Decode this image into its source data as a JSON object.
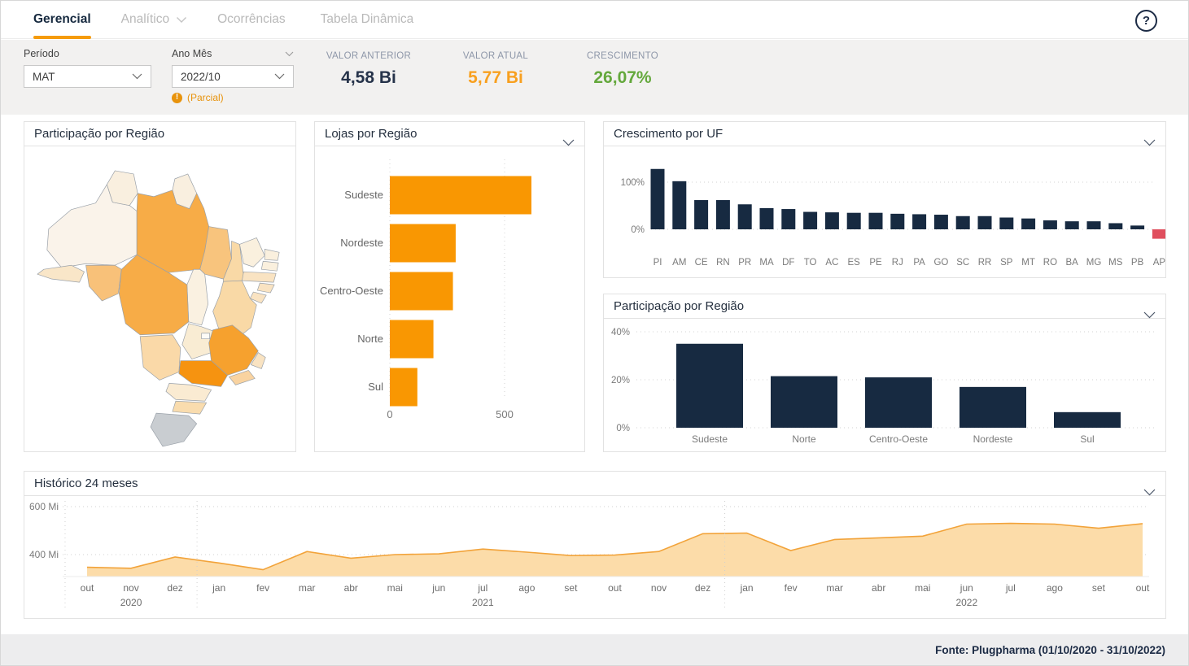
{
  "nav": {
    "tabs": [
      {
        "label": "Gerencial",
        "active": true
      },
      {
        "label": "Analítico",
        "active": false,
        "has_dropdown": true
      },
      {
        "label": "Ocorrências",
        "active": false
      },
      {
        "label": "Tabela Dinâmica",
        "active": false
      }
    ],
    "help_icon": "?"
  },
  "filters": {
    "periodo": {
      "label": "Período",
      "value": "MAT"
    },
    "ano_mes": {
      "label": "Ano Mês",
      "value": "2022/10",
      "warning": "(Parcial)"
    }
  },
  "kpis": [
    {
      "label": "VALOR ANTERIOR",
      "value": "4,58 Bi",
      "color": "#26334a"
    },
    {
      "label": "VALOR ATUAL",
      "value": "5,77 Bi",
      "color": "#f8a01f"
    },
    {
      "label": "CRESCIMENTO",
      "value": "26,07%",
      "color": "#64a83c"
    }
  ],
  "panels": {
    "map": {
      "title": "Participação por Região"
    },
    "lojas": {
      "title": "Lojas por Região"
    },
    "uf": {
      "title": "Crescimento por UF"
    },
    "regiao": {
      "title": "Participação por Região"
    },
    "historico": {
      "title": "Histórico 24 meses"
    }
  },
  "theme": {
    "orange": "#f99702",
    "navy": "#172a41",
    "red": "#e04f5e",
    "area_fill": "#fcdca9",
    "area_line": "#f2a33a",
    "grid": "#d3d3d3",
    "axis_text": "#7a7a7a"
  },
  "map": {
    "states": [
      {
        "id": "RR",
        "fill": "#f9efdf"
      },
      {
        "id": "AP",
        "fill": "#f9efdf"
      },
      {
        "id": "AM",
        "fill": "#faf3ea"
      },
      {
        "id": "PA",
        "fill": "#f7ac47"
      },
      {
        "id": "AC",
        "fill": "#f9e6c8"
      },
      {
        "id": "RO",
        "fill": "#f8c179"
      },
      {
        "id": "MA",
        "fill": "#f8c47d"
      },
      {
        "id": "PI",
        "fill": "#f9d9a6"
      },
      {
        "id": "CE",
        "fill": "#faf0de"
      },
      {
        "id": "RN",
        "fill": "#faf0de"
      },
      {
        "id": "PB",
        "fill": "#faf0de"
      },
      {
        "id": "PE",
        "fill": "#f9e3c2"
      },
      {
        "id": "AL",
        "fill": "#f9e3c2"
      },
      {
        "id": "SE",
        "fill": "#f9e3c2"
      },
      {
        "id": "BA",
        "fill": "#f9d9a6"
      },
      {
        "id": "TO",
        "fill": "#faf1e1"
      },
      {
        "id": "MT",
        "fill": "#f7ac47"
      },
      {
        "id": "GO",
        "fill": "#f9ecd3"
      },
      {
        "id": "DF",
        "fill": "#fdfbf7"
      },
      {
        "id": "MS",
        "fill": "#fad9a8"
      },
      {
        "id": "MG",
        "fill": "#f6a12e"
      },
      {
        "id": "ES",
        "fill": "#f9e3c2"
      },
      {
        "id": "RJ",
        "fill": "#f9d3a0"
      },
      {
        "id": "SP",
        "fill": "#f69310"
      },
      {
        "id": "PR",
        "fill": "#faebd2"
      },
      {
        "id": "SC",
        "fill": "#f9dcae"
      },
      {
        "id": "RS",
        "fill": "#c9cdd1"
      }
    ]
  },
  "chart_data": [
    {
      "id": "lojas",
      "type": "bar",
      "orientation": "horizontal",
      "title": "Lojas por Região",
      "categories": [
        "Sudeste",
        "Nordeste",
        "Centro-Oeste",
        "Norte",
        "Sul"
      ],
      "values": [
        617,
        287,
        275,
        190,
        120
      ],
      "xlabel": "",
      "ylabel": "",
      "xlim": [
        0,
        820
      ],
      "xticks": [
        0,
        500
      ],
      "grid": "dotted-vertical",
      "bar_color": "#f99702"
    },
    {
      "id": "uf",
      "type": "bar",
      "title": "Crescimento por UF",
      "categories": [
        "PI",
        "AM",
        "CE",
        "RN",
        "PR",
        "MA",
        "DF",
        "TO",
        "AC",
        "ES",
        "PE",
        "RJ",
        "PA",
        "GO",
        "SC",
        "RR",
        "SP",
        "MT",
        "RO",
        "BA",
        "MG",
        "MS",
        "PB",
        "AP"
      ],
      "values": [
        128,
        102,
        62,
        62,
        53,
        45,
        43,
        37,
        36,
        35,
        35,
        33,
        32,
        31,
        28,
        28,
        25,
        23,
        19,
        17,
        17,
        13,
        8,
        -20
      ],
      "ylabel": "%",
      "ylim": [
        -30,
        140
      ],
      "yticks": [
        0,
        100
      ],
      "ytick_labels": [
        "0%",
        "100%"
      ],
      "grid": "dotted-horizontal",
      "bar_color": "#172a41",
      "negative_color": "#e04f5e"
    },
    {
      "id": "regiao",
      "type": "bar",
      "title": "Participação por Região",
      "categories": [
        "Sudeste",
        "Norte",
        "Centro-Oeste",
        "Nordeste",
        "Sul"
      ],
      "values": [
        35,
        21.5,
        21,
        17,
        6.5
      ],
      "ylabel": "%",
      "ylim": [
        0,
        45
      ],
      "yticks": [
        0,
        20,
        40
      ],
      "ytick_labels": [
        "0%",
        "20%",
        "40%"
      ],
      "grid": "dotted-horizontal",
      "bar_color": "#172a41"
    },
    {
      "id": "historico",
      "type": "area",
      "title": "Histórico 24 meses",
      "x": [
        "out",
        "nov",
        "dez",
        "jan",
        "fev",
        "mar",
        "abr",
        "mai",
        "jun",
        "jul",
        "ago",
        "set",
        "out",
        "nov",
        "dez",
        "jan",
        "fev",
        "mar",
        "abr",
        "mai",
        "jun",
        "jul",
        "ago",
        "set",
        "out"
      ],
      "year_groups": [
        {
          "label": "2020",
          "center_index": 1
        },
        {
          "label": "2021",
          "center_index": 9
        },
        {
          "label": "2022",
          "center_index": 20
        }
      ],
      "year_separators_after_index": [
        -0.5,
        2.5,
        14.5
      ],
      "values": [
        347,
        343,
        390,
        365,
        337,
        413,
        385,
        400,
        403,
        423,
        410,
        396,
        398,
        413,
        487,
        490,
        417,
        463,
        470,
        477,
        527,
        530,
        527,
        510,
        529
      ],
      "unit": "Mi",
      "ylim": [
        308,
        650
      ],
      "yticks": [
        400,
        600
      ],
      "ytick_labels": [
        "400 Mi",
        "600 Mi"
      ],
      "grid": "dotted-horizontal",
      "line_color": "#f2a33a",
      "fill_color": "#fcdca9"
    }
  ],
  "footer": {
    "source": "Fonte: Plugpharma (01/10/2020 - 31/10/2022)"
  }
}
